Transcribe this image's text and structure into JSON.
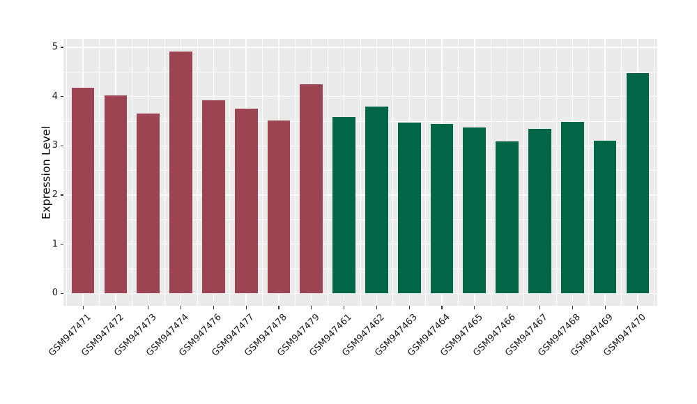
{
  "chart_data": {
    "type": "bar",
    "title": "",
    "xlabel": "",
    "ylabel": "Expression Level",
    "ylim": [
      -0.25,
      5.17
    ],
    "yticks": [
      0,
      1,
      2,
      3,
      4,
      5
    ],
    "ytick_labels": [
      "0",
      "1",
      "2",
      "3",
      "4",
      "5"
    ],
    "categories": [
      "GSM947471",
      "GSM947472",
      "GSM947473",
      "GSM947474",
      "GSM947476",
      "GSM947477",
      "GSM947478",
      "GSM947479",
      "GSM947461",
      "GSM947462",
      "GSM947463",
      "GSM947464",
      "GSM947465",
      "GSM947466",
      "GSM947467",
      "GSM947468",
      "GSM947469",
      "GSM947470"
    ],
    "values": [
      4.18,
      4.02,
      3.65,
      4.92,
      3.93,
      3.76,
      3.51,
      4.25,
      3.59,
      3.8,
      3.47,
      3.45,
      3.37,
      3.09,
      3.35,
      3.49,
      3.1,
      4.47
    ],
    "groups": [
      "red",
      "red",
      "red",
      "red",
      "red",
      "red",
      "red",
      "red",
      "green",
      "green",
      "green",
      "green",
      "green",
      "green",
      "green",
      "green",
      "green",
      "green"
    ],
    "group_colors": {
      "red": "#9C4452",
      "green": "#006647"
    },
    "panel_background": "#EBEBEB",
    "grid": {
      "major_color": "#FFFFFF",
      "minor_color": "#FFFFFF",
      "major_on": true,
      "minor_on": true
    },
    "tick_color": "#333333",
    "bar_width_ratio": 0.7,
    "legend": "none"
  }
}
